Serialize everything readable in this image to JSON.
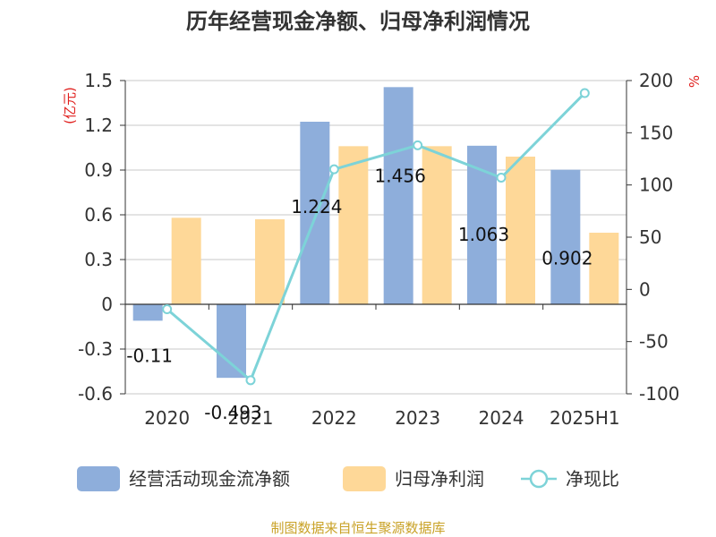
{
  "chart_data": {
    "type": "bar",
    "title": "历年经营现金净额、归母净利润情况",
    "categories": [
      "2020",
      "2021",
      "2022",
      "2023",
      "2024",
      "2025H1"
    ],
    "series": [
      {
        "name": "经营活动现金流净额",
        "type": "bar",
        "axis": "left",
        "color": "#8eaedb",
        "values": [
          -0.11,
          -0.493,
          1.224,
          1.456,
          1.063,
          0.902
        ],
        "labels": [
          "-0.11",
          "-0.493",
          "1.224",
          "1.456",
          "1.063",
          "0.902"
        ]
      },
      {
        "name": "归母净利润",
        "type": "bar",
        "axis": "left",
        "color": "#fed898",
        "values": [
          0.58,
          0.57,
          1.06,
          1.06,
          0.99,
          0.48
        ]
      },
      {
        "name": "净现比",
        "type": "line",
        "axis": "right",
        "color": "#7dd3d8",
        "values": [
          -19,
          -87,
          115,
          138,
          107,
          188
        ]
      }
    ],
    "y_left": {
      "unit": "(亿元)",
      "min": -0.6,
      "max": 1.5,
      "ticks": [
        -0.6,
        -0.3,
        0,
        0.3,
        0.6,
        0.9,
        1.2,
        1.5
      ],
      "tick_labels": [
        "-0.6",
        "-0.3",
        "0",
        "0.3",
        "0.6",
        "0.9",
        "1.2",
        "1.5"
      ]
    },
    "y_right": {
      "unit": "%",
      "min": -100,
      "max": 200,
      "ticks": [
        -100,
        -50,
        0,
        50,
        100,
        150,
        200
      ],
      "tick_labels": [
        "-100",
        "-50",
        "0",
        "50",
        "100",
        "150",
        "200"
      ]
    },
    "grid": true,
    "legend_position": "bottom",
    "source": "制图数据来自恒生聚源数据库"
  }
}
